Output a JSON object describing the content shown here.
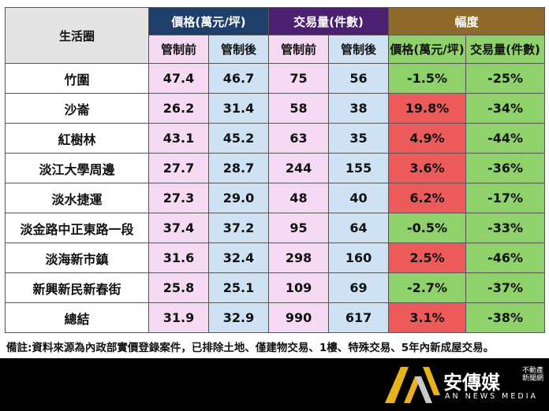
{
  "header": {
    "area_label": "生活圈",
    "price_group": "價格(萬元/坪)",
    "volume_group": "交易量(件數)",
    "range_group": "幅度",
    "before": "管制前",
    "after": "管制後",
    "range_price": "價格(萬元/坪)",
    "range_volume": "交易量(件數)"
  },
  "rows": [
    {
      "area": "竹圍",
      "price_before": "47.4",
      "price_after": "46.7",
      "vol_before": "75",
      "vol_after": "56",
      "price_change": "-1.5%",
      "vol_change": "-25%",
      "price_change_color": "green"
    },
    {
      "area": "沙崙",
      "price_before": "26.2",
      "price_after": "31.4",
      "vol_before": "58",
      "vol_after": "38",
      "price_change": "19.8%",
      "vol_change": "-34%",
      "price_change_color": "red"
    },
    {
      "area": "紅樹林",
      "price_before": "43.1",
      "price_after": "45.2",
      "vol_before": "63",
      "vol_after": "35",
      "price_change": "4.9%",
      "vol_change": "-44%",
      "price_change_color": "red"
    },
    {
      "area": "淡江大學周邊",
      "price_before": "27.7",
      "price_after": "28.7",
      "vol_before": "244",
      "vol_after": "155",
      "price_change": "3.6%",
      "vol_change": "-36%",
      "price_change_color": "red"
    },
    {
      "area": "淡水捷運",
      "price_before": "27.3",
      "price_after": "29.0",
      "vol_before": "48",
      "vol_after": "40",
      "price_change": "6.2%",
      "vol_change": "-17%",
      "price_change_color": "red"
    },
    {
      "area": "淡金路中正東路一段",
      "price_before": "37.4",
      "price_after": "37.2",
      "vol_before": "95",
      "vol_after": "64",
      "price_change": "-0.5%",
      "vol_change": "-33%",
      "price_change_color": "green"
    },
    {
      "area": "淡海新市鎮",
      "price_before": "31.6",
      "price_after": "32.4",
      "vol_before": "298",
      "vol_after": "160",
      "price_change": "2.5%",
      "vol_change": "-46%",
      "price_change_color": "red"
    },
    {
      "area": "新興新民新春街",
      "price_before": "25.8",
      "price_after": "25.1",
      "vol_before": "109",
      "vol_after": "69",
      "price_change": "-2.7%",
      "vol_change": "-37%",
      "price_change_color": "green"
    },
    {
      "area": "總結",
      "price_before": "31.9",
      "price_after": "32.9",
      "vol_before": "990",
      "vol_after": "617",
      "price_change": "3.1%",
      "vol_change": "-38%",
      "price_change_color": "red"
    }
  ],
  "footnote": "備註:資料來源為內政部實價登錄案件，已排除土地、僅建物交易、1樓、特殊交易、5年內新成屋交易。",
  "logo": {
    "name": "安傳媒",
    "sub": "不動產新聞網",
    "english": "AN NEWS MEDIA"
  },
  "colors": {
    "price_header": "#1f3f6a",
    "volume_header": "#4b2070",
    "range_header": "#8e6a2b",
    "before_cell": "#f6d9f3",
    "after_cell": "#cfe2f3",
    "change_up": "#ec5a5a",
    "change_down": "#8fd16a"
  }
}
